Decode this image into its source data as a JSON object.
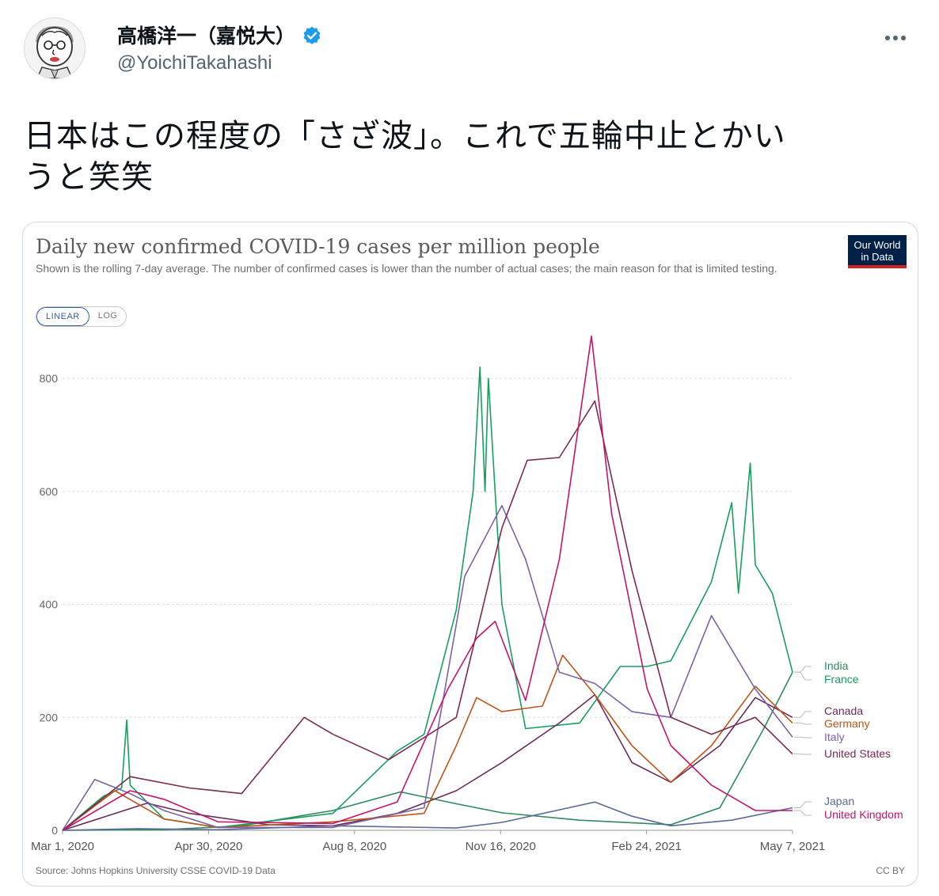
{
  "tweet": {
    "display_name": "高橋洋一（嘉悦大）",
    "handle": "@YoichiTakahashi",
    "text_line1": "日本はこの程度の「さざ波」。これで五輪中止とかい",
    "text_line2": "うと笑笑",
    "icons": {
      "avatar": "caricature-avatar",
      "verified": "verified-badge-icon",
      "more": "more-options-icon"
    },
    "colors": {
      "verified": "#1d9bf0",
      "handle": "#536471"
    }
  },
  "card": {
    "title": "Daily new confirmed COVID-19 cases per million people",
    "subtitle": "Shown is the rolling 7-day average. The number of confirmed cases is lower than the number of actual cases; the main reason for that is limited testing.",
    "logo_line1": "Our World",
    "logo_line2": "in Data",
    "toggle_linear": "LINEAR",
    "toggle_log": "LOG",
    "source": "Source: Johns Hopkins University CSSE COVID-19 Data",
    "license": "CC BY"
  },
  "chart_data": {
    "type": "line",
    "title": "Daily new confirmed COVID-19 cases per million people",
    "xlabel": "",
    "ylabel": "",
    "x_ticks": [
      "Mar 1, 2020",
      "Apr 30, 2020",
      "Aug 8, 2020",
      "Nov 16, 2020",
      "Feb 24, 2021",
      "May 7, 2021"
    ],
    "y_ticks": [
      0,
      200,
      400,
      600,
      800
    ],
    "ylim": [
      0,
      880
    ],
    "xlim": [
      "2020-03-01",
      "2021-05-07"
    ],
    "grid": "horizontal dashed",
    "legend": "right, end-of-line labels",
    "series": [
      {
        "name": "India",
        "color": "#2f8a5e",
        "points": [
          [
            "2020-03-01",
            0
          ],
          [
            "2020-04-30",
            1
          ],
          [
            "2020-06-15",
            8
          ],
          [
            "2020-08-08",
            35
          ],
          [
            "2020-09-17",
            68
          ],
          [
            "2020-10-20",
            47
          ],
          [
            "2020-11-16",
            31
          ],
          [
            "2021-01-01",
            18
          ],
          [
            "2021-02-24",
            10
          ],
          [
            "2021-03-25",
            40
          ],
          [
            "2021-04-20",
            180
          ],
          [
            "2021-05-07",
            280
          ]
        ]
      },
      {
        "name": "France",
        "color": "#17a05d",
        "points": [
          [
            "2020-03-01",
            0
          ],
          [
            "2020-03-25",
            60
          ],
          [
            "2020-04-05",
            75
          ],
          [
            "2020-04-08",
            195
          ],
          [
            "2020-04-10",
            80
          ],
          [
            "2020-04-30",
            20
          ],
          [
            "2020-06-01",
            5
          ],
          [
            "2020-08-08",
            30
          ],
          [
            "2020-09-15",
            140
          ],
          [
            "2020-10-01",
            170
          ],
          [
            "2020-10-20",
            390
          ],
          [
            "2020-10-30",
            600
          ],
          [
            "2020-11-03",
            820
          ],
          [
            "2020-11-06",
            600
          ],
          [
            "2020-11-08",
            800
          ],
          [
            "2020-11-16",
            400
          ],
          [
            "2020-11-30",
            180
          ],
          [
            "2021-01-01",
            190
          ],
          [
            "2021-01-25",
            290
          ],
          [
            "2021-02-10",
            290
          ],
          [
            "2021-02-24",
            300
          ],
          [
            "2021-03-20",
            440
          ],
          [
            "2021-04-01",
            580
          ],
          [
            "2021-04-05",
            420
          ],
          [
            "2021-04-12",
            650
          ],
          [
            "2021-04-15",
            470
          ],
          [
            "2021-04-25",
            420
          ],
          [
            "2021-05-07",
            280
          ]
        ]
      },
      {
        "name": "Canada",
        "color": "#6c2c5a",
        "points": [
          [
            "2020-03-01",
            0
          ],
          [
            "2020-04-20",
            48
          ],
          [
            "2020-05-15",
            30
          ],
          [
            "2020-07-01",
            10
          ],
          [
            "2020-08-08",
            8
          ],
          [
            "2020-09-15",
            30
          ],
          [
            "2020-10-20",
            70
          ],
          [
            "2020-11-16",
            120
          ],
          [
            "2020-12-20",
            190
          ],
          [
            "2021-01-10",
            240
          ],
          [
            "2021-02-01",
            120
          ],
          [
            "2021-02-24",
            85
          ],
          [
            "2021-03-25",
            150
          ],
          [
            "2021-04-15",
            235
          ],
          [
            "2021-05-07",
            200
          ]
        ]
      },
      {
        "name": "Germany",
        "color": "#c0541a",
        "points": [
          [
            "2020-03-01",
            0
          ],
          [
            "2020-04-01",
            70
          ],
          [
            "2020-04-30",
            20
          ],
          [
            "2020-06-01",
            5
          ],
          [
            "2020-08-08",
            15
          ],
          [
            "2020-10-01",
            30
          ],
          [
            "2020-10-20",
            150
          ],
          [
            "2020-11-01",
            235
          ],
          [
            "2020-11-16",
            210
          ],
          [
            "2020-12-10",
            220
          ],
          [
            "2020-12-22",
            310
          ],
          [
            "2021-01-10",
            240
          ],
          [
            "2021-02-01",
            150
          ],
          [
            "2021-02-24",
            85
          ],
          [
            "2021-03-20",
            150
          ],
          [
            "2021-04-15",
            255
          ],
          [
            "2021-05-07",
            190
          ]
        ]
      },
      {
        "name": "Italy",
        "color": "#7c63a7",
        "points": [
          [
            "2020-03-01",
            0
          ],
          [
            "2020-03-20",
            90
          ],
          [
            "2020-04-10",
            65
          ],
          [
            "2020-04-30",
            35
          ],
          [
            "2020-06-01",
            5
          ],
          [
            "2020-08-08",
            5
          ],
          [
            "2020-10-01",
            40
          ],
          [
            "2020-10-25",
            450
          ],
          [
            "2020-11-16",
            575
          ],
          [
            "2020-11-30",
            480
          ],
          [
            "2020-12-20",
            280
          ],
          [
            "2021-01-10",
            260
          ],
          [
            "2021-02-01",
            210
          ],
          [
            "2021-02-24",
            200
          ],
          [
            "2021-03-20",
            380
          ],
          [
            "2021-04-15",
            250
          ],
          [
            "2021-05-07",
            165
          ]
        ]
      },
      {
        "name": "United States",
        "color": "#7d2a50",
        "points": [
          [
            "2020-03-01",
            0
          ],
          [
            "2020-04-10",
            95
          ],
          [
            "2020-05-15",
            75
          ],
          [
            "2020-06-15",
            65
          ],
          [
            "2020-07-22",
            200
          ],
          [
            "2020-08-08",
            170
          ],
          [
            "2020-09-10",
            125
          ],
          [
            "2020-10-20",
            200
          ],
          [
            "2020-11-16",
            535
          ],
          [
            "2020-12-01",
            655
          ],
          [
            "2020-12-20",
            660
          ],
          [
            "2021-01-10",
            760
          ],
          [
            "2021-02-01",
            460
          ],
          [
            "2021-02-24",
            200
          ],
          [
            "2021-03-20",
            170
          ],
          [
            "2021-04-15",
            200
          ],
          [
            "2021-05-07",
            135
          ]
        ]
      },
      {
        "name": "Japan",
        "color": "#5a6a9a",
        "points": [
          [
            "2020-03-01",
            0
          ],
          [
            "2020-04-15",
            3
          ],
          [
            "2020-06-01",
            1
          ],
          [
            "2020-08-08",
            8
          ],
          [
            "2020-10-20",
            4
          ],
          [
            "2020-11-16",
            14
          ],
          [
            "2021-01-10",
            50
          ],
          [
            "2021-02-01",
            25
          ],
          [
            "2021-02-24",
            8
          ],
          [
            "2021-04-01",
            18
          ],
          [
            "2021-05-07",
            40
          ]
        ]
      },
      {
        "name": "United Kingdom",
        "color": "#c3156b",
        "points": [
          [
            "2020-03-01",
            0
          ],
          [
            "2020-04-10",
            70
          ],
          [
            "2020-04-30",
            55
          ],
          [
            "2020-06-01",
            15
          ],
          [
            "2020-08-08",
            12
          ],
          [
            "2020-09-15",
            50
          ],
          [
            "2020-10-15",
            250
          ],
          [
            "2020-11-01",
            340
          ],
          [
            "2020-11-12",
            370
          ],
          [
            "2020-11-30",
            230
          ],
          [
            "2020-12-20",
            480
          ],
          [
            "2021-01-08",
            875
          ],
          [
            "2021-01-20",
            560
          ],
          [
            "2021-02-10",
            250
          ],
          [
            "2021-02-24",
            150
          ],
          [
            "2021-03-20",
            80
          ],
          [
            "2021-04-15",
            35
          ],
          [
            "2021-05-07",
            35
          ]
        ]
      }
    ]
  }
}
